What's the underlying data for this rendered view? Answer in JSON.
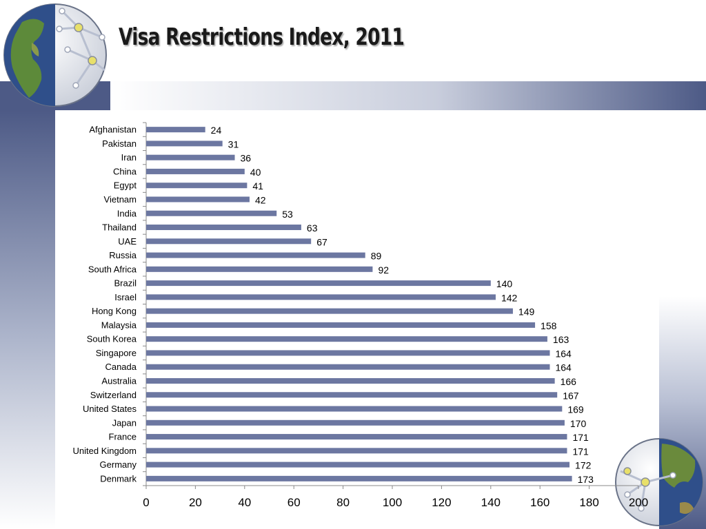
{
  "slide": {
    "title": "Visa Restrictions Index, 2011"
  },
  "theme": {
    "bar_color": "#6c77a1",
    "band_color": "#4d5a86",
    "text_color": "#000000"
  },
  "icons": {
    "top_left": "globe-network-americas-icon",
    "bottom_right": "globe-network-asia-icon"
  },
  "chart_data": {
    "type": "bar",
    "orientation": "horizontal",
    "title": "",
    "xlabel": "",
    "ylabel": "",
    "xlim": [
      0,
      200
    ],
    "x_ticks": [
      0,
      20,
      40,
      60,
      80,
      100,
      120,
      140,
      160,
      180,
      200
    ],
    "grid": false,
    "legend": "none",
    "data_labels": true,
    "categories": [
      "Afghanistan",
      "Pakistan",
      "Iran",
      "China",
      "Egypt",
      "Vietnam",
      "India",
      "Thailand",
      "UAE",
      "Russia",
      "South Africa",
      "Brazil",
      "Israel",
      "Hong Kong",
      "Malaysia",
      "South Korea",
      "Singapore",
      "Canada",
      "Australia",
      "Switzerland",
      "United States",
      "Japan",
      "France",
      "United Kingdom",
      "Germany",
      "Denmark"
    ],
    "values": [
      24,
      31,
      36,
      40,
      41,
      42,
      53,
      63,
      67,
      89,
      92,
      140,
      142,
      149,
      158,
      163,
      164,
      164,
      166,
      167,
      169,
      170,
      171,
      171,
      172,
      173
    ]
  }
}
